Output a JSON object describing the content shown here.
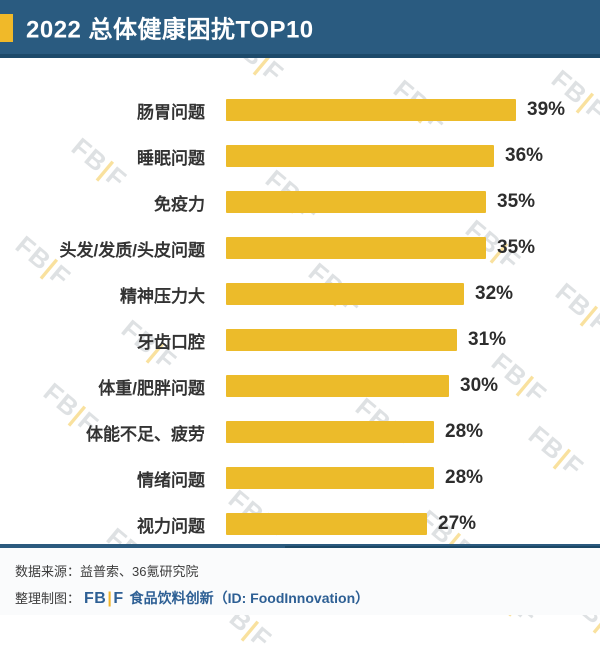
{
  "header": {
    "title": "2022 总体健康困扰TOP10"
  },
  "chart_data": {
    "type": "bar",
    "orientation": "horizontal",
    "title": "2022 总体健康困扰TOP10",
    "categories": [
      "肠胃问题",
      "睡眠问题",
      "免疫力",
      "头发/发质/头皮问题",
      "精神压力大",
      "牙齿口腔",
      "体重/肥胖问题",
      "体能不足、疲劳",
      "情绪问题",
      "视力问题"
    ],
    "values": [
      39,
      36,
      35,
      35,
      32,
      31,
      30,
      28,
      28,
      27
    ],
    "value_labels": [
      "39%",
      "36%",
      "35%",
      "35%",
      "32%",
      "31%",
      "30%",
      "28%",
      "28%",
      "27%"
    ],
    "unit": "%",
    "xlim": [
      0,
      40
    ],
    "grid": false,
    "legend": false,
    "bar_color": "#ecbb2a"
  },
  "watermark": {
    "left": "FB",
    "separator": "|",
    "right": "F"
  },
  "footer": {
    "source_label": "数据来源：益普索、36氪研究院",
    "credit_label": "整理制图：",
    "logo_fb": "FB",
    "logo_sep": "|",
    "logo_f": "F",
    "credit_name": "食品饮料创新",
    "credit_id": "（ID: FoodInnovation）"
  },
  "colors": {
    "header_bg": "#2a5b80",
    "accent_yellow": "#f0b929",
    "bar_yellow": "#ecbb2a",
    "footer_blue": "#2d5f94",
    "divider_blue": "#2b5a7e"
  }
}
